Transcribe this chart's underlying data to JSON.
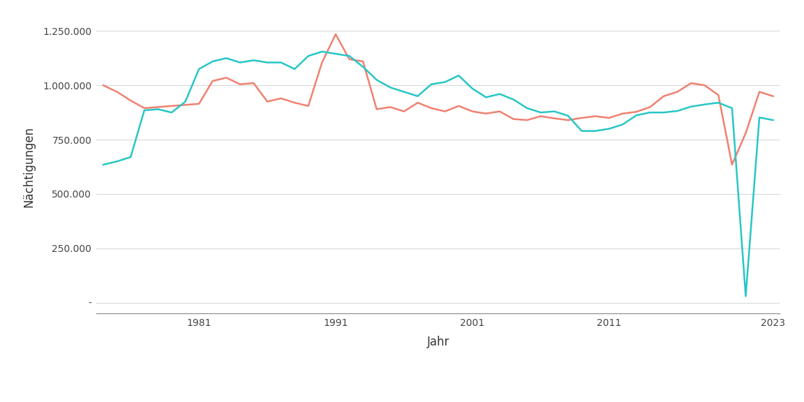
{
  "title": "",
  "xlabel": "Jahr",
  "ylabel": "Nächtigungen",
  "line_color_sommer": "#F08070",
  "line_color_winter": "#26C6C6",
  "background_color": "#ffffff",
  "grid_color": "#d9d9d9",
  "ylim": [
    -50000,
    1300000
  ],
  "yticks": [
    0,
    250000,
    500000,
    750000,
    1000000,
    1250000
  ],
  "ytick_labels": [
    "-",
    "250.000",
    "500.000",
    "750.000",
    "1.000.000",
    "1.250.000"
  ],
  "xticks": [
    1981,
    1991,
    2001,
    2011,
    2023
  ],
  "years": [
    1974,
    1975,
    1976,
    1977,
    1978,
    1979,
    1980,
    1981,
    1982,
    1983,
    1984,
    1985,
    1986,
    1987,
    1988,
    1989,
    1990,
    1991,
    1992,
    1993,
    1994,
    1995,
    1996,
    1997,
    1998,
    1999,
    2000,
    2001,
    2002,
    2003,
    2004,
    2005,
    2006,
    2007,
    2008,
    2009,
    2010,
    2011,
    2012,
    2013,
    2014,
    2015,
    2016,
    2017,
    2018,
    2019,
    2020,
    2021,
    2022,
    2023
  ],
  "sommer": [
    1000000,
    970000,
    930000,
    895000,
    900000,
    905000,
    910000,
    915000,
    1020000,
    1035000,
    1005000,
    1010000,
    925000,
    940000,
    920000,
    905000,
    1105000,
    1235000,
    1120000,
    1110000,
    890000,
    900000,
    880000,
    920000,
    895000,
    880000,
    905000,
    880000,
    870000,
    880000,
    845000,
    840000,
    858000,
    848000,
    840000,
    850000,
    858000,
    850000,
    870000,
    878000,
    900000,
    950000,
    970000,
    1010000,
    1000000,
    955000,
    635000,
    780000,
    970000,
    950000
  ],
  "winter": [
    635000,
    650000,
    670000,
    885000,
    890000,
    875000,
    925000,
    1075000,
    1110000,
    1125000,
    1105000,
    1115000,
    1105000,
    1105000,
    1075000,
    1135000,
    1155000,
    1145000,
    1135000,
    1085000,
    1025000,
    990000,
    970000,
    950000,
    1005000,
    1015000,
    1045000,
    985000,
    945000,
    960000,
    935000,
    895000,
    875000,
    880000,
    860000,
    790000,
    790000,
    800000,
    820000,
    862000,
    875000,
    875000,
    882000,
    902000,
    912000,
    920000,
    895000,
    30000,
    852000,
    840000
  ],
  "line_width": 1.8,
  "legend_fontsize": 11,
  "axis_fontsize": 12,
  "tick_fontsize": 10
}
